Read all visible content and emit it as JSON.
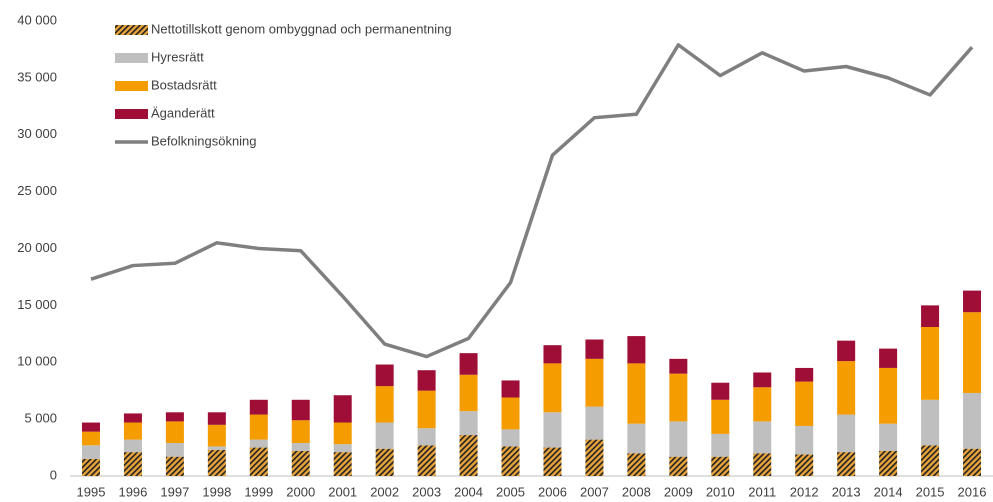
{
  "chart_data": {
    "type": "bar",
    "stacked": true,
    "categories": [
      "1995",
      "1996",
      "1997",
      "1998",
      "1999",
      "2000",
      "2001",
      "2002",
      "2003",
      "2004",
      "2005",
      "2006",
      "2007",
      "2008",
      "2009",
      "2010",
      "2011",
      "2012",
      "2013",
      "2014",
      "2015",
      "2016"
    ],
    "series": [
      {
        "name": "Nettotillskott genom ombyggnad och permanentning",
        "color": "#e8a33b",
        "hatch": true,
        "values": [
          1500,
          2100,
          1700,
          2300,
          2500,
          2200,
          2100,
          2400,
          2700,
          3600,
          2600,
          2500,
          3200,
          2000,
          1700,
          1700,
          2000,
          1900,
          2100,
          2200,
          2700,
          2400
        ]
      },
      {
        "name": "Hyresrätt",
        "color": "#bfbfbf",
        "values": [
          1200,
          1100,
          1200,
          300,
          700,
          700,
          700,
          2300,
          1500,
          2100,
          1500,
          3100,
          2900,
          2600,
          3100,
          2000,
          2800,
          2500,
          3300,
          2400,
          4000,
          4900
        ]
      },
      {
        "name": "Bostadsrätt",
        "color": "#f59c00",
        "values": [
          1200,
          1500,
          1900,
          1900,
          2200,
          2000,
          1900,
          3200,
          3300,
          3200,
          2800,
          4300,
          4200,
          5300,
          4200,
          3000,
          3000,
          3900,
          4700,
          4900,
          6400,
          7100
        ]
      },
      {
        "name": "Äganderätt",
        "color": "#9e0e36",
        "values": [
          800,
          800,
          800,
          1100,
          1300,
          1800,
          2400,
          1900,
          1800,
          1900,
          1500,
          1600,
          1700,
          2400,
          1300,
          1500,
          1300,
          1200,
          1800,
          1700,
          1900,
          1900
        ]
      },
      {
        "name": "Befolkningsökning",
        "color": "#7f7f7f",
        "type": "line",
        "values": [
          17300,
          18500,
          18700,
          20500,
          20000,
          19800,
          15800,
          11600,
          10500,
          12100,
          17000,
          28200,
          31500,
          31800,
          37900,
          35200,
          37200,
          35600,
          36000,
          35000,
          33500,
          37700
        ]
      }
    ],
    "ylim": [
      0,
      40000
    ],
    "yticks": [
      0,
      {
        "value": 5000,
        "label": "5 000"
      },
      {
        "value": 10000,
        "label": "10 000"
      },
      {
        "value": 15000,
        "label": "15 000"
      },
      {
        "value": 20000,
        "label": "20 000"
      },
      {
        "value": 25000,
        "label": "25 000"
      },
      {
        "value": 30000,
        "label": "30 000"
      },
      {
        "value": 35000,
        "label": "35 000"
      },
      {
        "value": 40000,
        "label": "40 000"
      }
    ],
    "grid": false,
    "legend": "upper left"
  }
}
